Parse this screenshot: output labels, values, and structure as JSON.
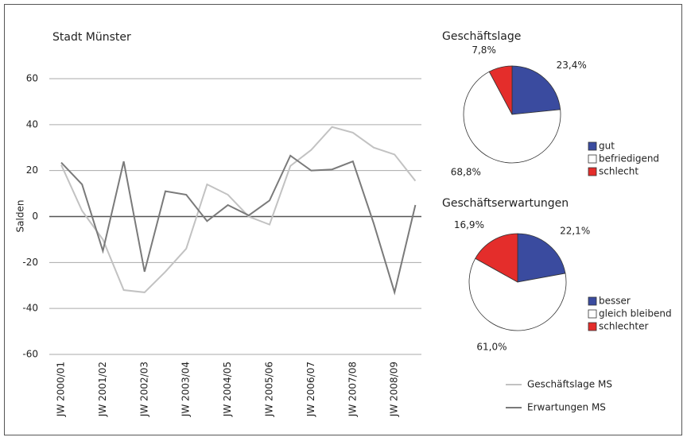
{
  "chart_data": [
    {
      "type": "line",
      "title": "Stadt Münster",
      "y_label": "Salden",
      "categories": [
        "JW 2000/01",
        null,
        "JW 2001/02",
        null,
        "JW 2002/03",
        null,
        "JW 2003/04",
        null,
        "JW 2004/05",
        null,
        "JW 2005/06",
        null,
        "JW 2006/07",
        null,
        "JW 2007/08",
        null,
        "JW 2008/09",
        null
      ],
      "series": [
        {
          "name": "Geschäftslage MS",
          "color": "#c2c2c2",
          "values": [
            22.5,
            2.5,
            -10,
            -32,
            -33,
            -24,
            -14,
            14,
            9.5,
            0,
            -3.5,
            22,
            29,
            39,
            36.5,
            30,
            27,
            15.5
          ]
        },
        {
          "name": "Erwartungen MS",
          "color": "#7a7a7a",
          "values": [
            23.5,
            14,
            -15,
            24,
            -24,
            11,
            9.5,
            -2,
            5,
            0.5,
            7,
            26.5,
            20,
            20.5,
            24,
            -3,
            -33,
            5
          ]
        }
      ],
      "ylim": [
        -60,
        60
      ],
      "yticks": [
        -60,
        -40,
        -20,
        0,
        20,
        40,
        60
      ],
      "grid": true
    },
    {
      "type": "pie",
      "title": "Geschäftslage",
      "categories": [
        "gut",
        "befriedigend",
        "schlecht"
      ],
      "values": [
        23.4,
        68.8,
        7.8
      ],
      "value_labels": [
        "23,4%",
        "68,8%",
        "7,8%"
      ],
      "colors": [
        "#3a4b9f",
        "#ffffff",
        "#e42d2b"
      ]
    },
    {
      "type": "pie",
      "title": "Geschäftserwartungen",
      "categories": [
        "besser",
        "gleich bleibend",
        "schlechter"
      ],
      "values": [
        22.1,
        61.0,
        16.9
      ],
      "value_labels": [
        "22,1%",
        "61,0%",
        "16,9%"
      ],
      "colors": [
        "#3a4b9f",
        "#ffffff",
        "#e42d2b"
      ]
    }
  ]
}
